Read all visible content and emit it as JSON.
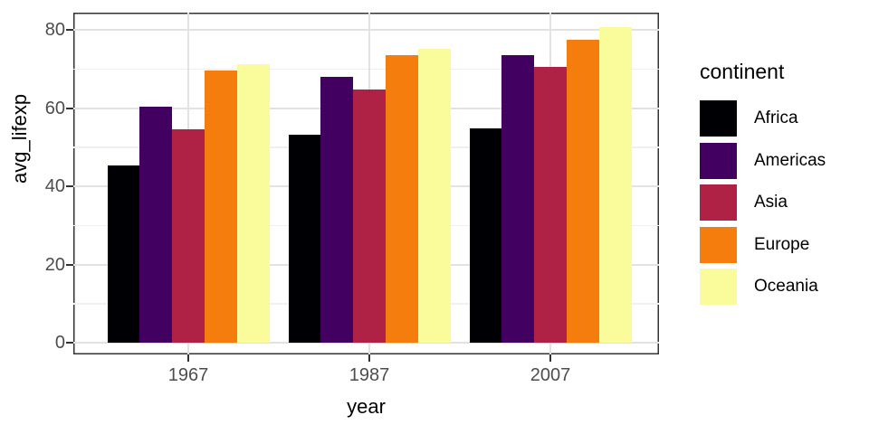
{
  "chart_data": {
    "type": "bar",
    "title": "",
    "xlabel": "year",
    "ylabel": "avg_lifexp",
    "categories": [
      "1967",
      "1987",
      "2007"
    ],
    "series": [
      {
        "name": "Africa",
        "color": "#000004",
        "values": [
          45.3,
          53.3,
          54.8
        ]
      },
      {
        "name": "Americas",
        "color": "#420060",
        "values": [
          60.4,
          68.1,
          73.6
        ]
      },
      {
        "name": "Asia",
        "color": "#AF2246",
        "values": [
          54.7,
          64.9,
          70.7
        ]
      },
      {
        "name": "Europe",
        "color": "#F57D0D",
        "values": [
          69.7,
          73.6,
          77.6
        ]
      },
      {
        "name": "Oceania",
        "color": "#FAFB9B",
        "values": [
          71.3,
          75.3,
          80.7
        ]
      }
    ],
    "y_major_breaks": [
      0,
      20,
      40,
      60,
      80
    ],
    "y_minor_breaks": [
      10,
      30,
      50,
      70
    ],
    "ylim": [
      -3.0,
      84.5
    ],
    "legend": {
      "title": "continent",
      "position": "right"
    },
    "grid": true,
    "theme": {
      "grid_major_color": "#E2E2E2",
      "grid_minor_color": "#F0F0F0",
      "panel_border_color": "#333333",
      "axis_text_color": "#4D4D4D",
      "title_color": "#000000",
      "background": "#FFFFFF"
    }
  }
}
